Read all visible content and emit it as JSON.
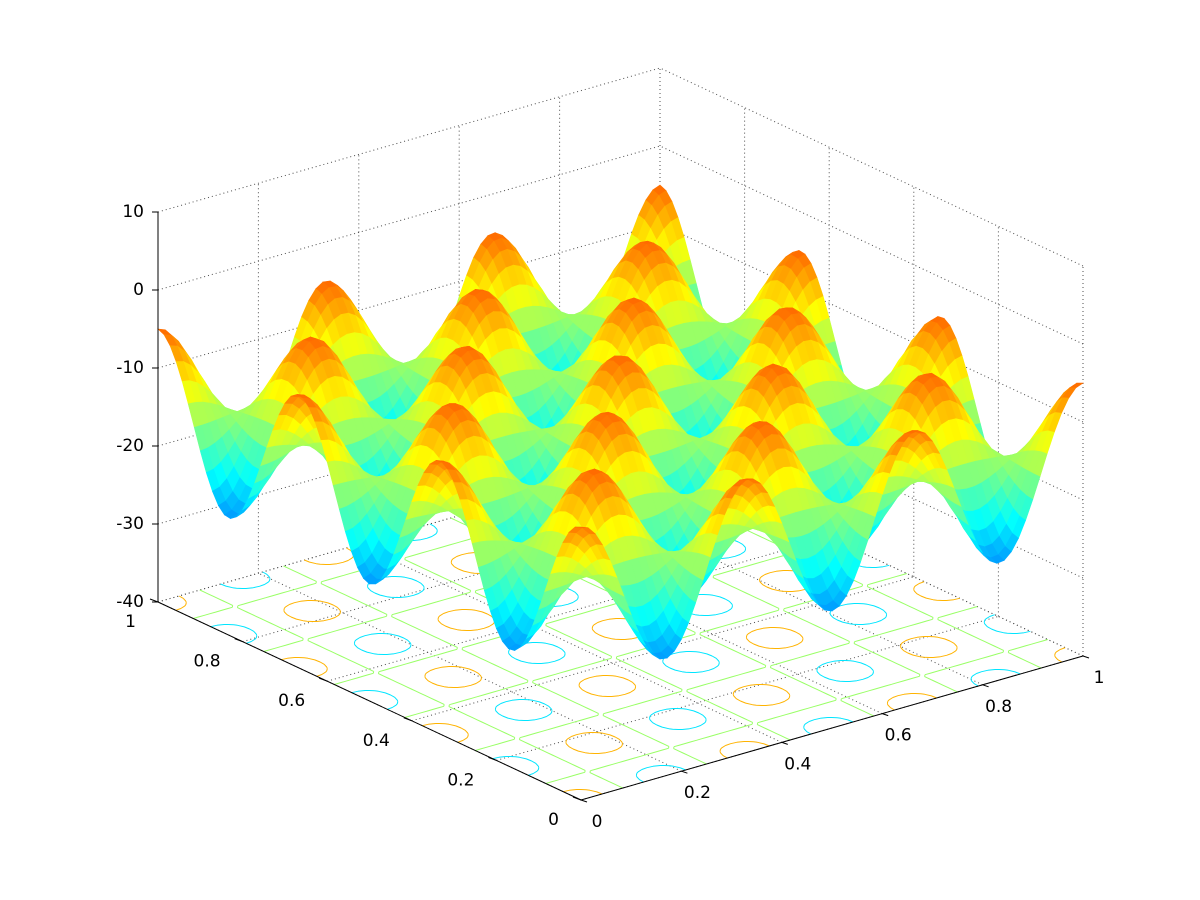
{
  "chart_data": {
    "type": "surface",
    "title": "",
    "xlabel": "",
    "ylabel": "",
    "zlabel": "",
    "function": "10*cos(3*pi*(2x-1)) * cos(3*pi*(2y-1)) - 15 (approximate surface shape)",
    "x_range": [
      0,
      1
    ],
    "y_range": [
      0,
      1
    ],
    "z_range": [
      -40,
      10
    ],
    "x_ticks": [
      "0",
      "0.2",
      "0.4",
      "0.6",
      "0.8",
      "1"
    ],
    "y_ticks": [
      "0",
      "0.2",
      "0.4",
      "0.6",
      "0.8",
      "1"
    ],
    "z_ticks": [
      "-40",
      "-30",
      "-20",
      "-10",
      "0",
      "10"
    ],
    "x_tick_values": [
      0,
      0.2,
      0.4,
      0.6,
      0.8,
      1
    ],
    "y_tick_values": [
      0,
      0.2,
      0.4,
      0.6,
      0.8,
      1
    ],
    "z_tick_values": [
      -40,
      -30,
      -20,
      -10,
      0,
      10
    ],
    "surface_max": 4,
    "surface_min": -36,
    "grid": true,
    "base_contours": true,
    "colormap": "jet",
    "box_color": "#000000",
    "grid_color": "#4d4d4d"
  }
}
